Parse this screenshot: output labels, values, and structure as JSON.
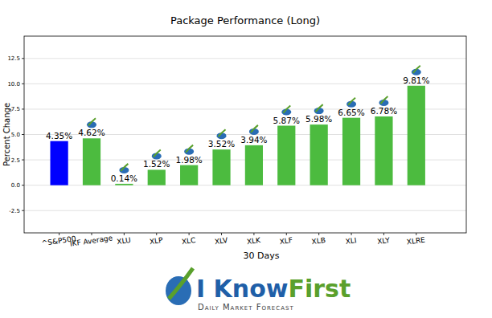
{
  "chart_data": {
    "type": "bar",
    "title": "Package Performance (Long)",
    "x_label": "30 Days",
    "y_label": "Percent Change",
    "categories": [
      "^S&P500",
      "IKF Average",
      "XLU",
      "XLP",
      "XLC",
      "XLV",
      "XLK",
      "XLF",
      "XLB",
      "XLI",
      "XLY",
      "XLRE"
    ],
    "values": [
      4.35,
      4.62,
      0.14,
      1.52,
      1.98,
      3.52,
      3.94,
      5.87,
      5.98,
      6.65,
      6.78,
      9.81
    ],
    "value_labels": [
      "4.35%",
      "4.62%",
      "0.14%",
      "1.52%",
      "1.98%",
      "3.52%",
      "3.94%",
      "5.87%",
      "5.98%",
      "6.65%",
      "6.78%",
      "9.81%"
    ],
    "colors": [
      "#0000ff",
      "#4cbb3f",
      "#4cbb3f",
      "#4cbb3f",
      "#4cbb3f",
      "#4cbb3f",
      "#4cbb3f",
      "#4cbb3f",
      "#4cbb3f",
      "#4cbb3f",
      "#4cbb3f",
      "#4cbb3f"
    ],
    "ylim": [
      -4.7,
      14.7
    ],
    "yticks": [
      -2.5,
      {
        "value": 0,
        "label": "0.0"
      },
      2.5,
      {
        "value": 5,
        "label": "5.0"
      },
      7.5,
      {
        "value": 10,
        "label": "10.0"
      },
      12.5
    ],
    "grid": true,
    "data_labels": true
  },
  "logo": {
    "brand": [
      "I Know",
      "First"
    ],
    "tagline": "Daily Market Forecast"
  }
}
